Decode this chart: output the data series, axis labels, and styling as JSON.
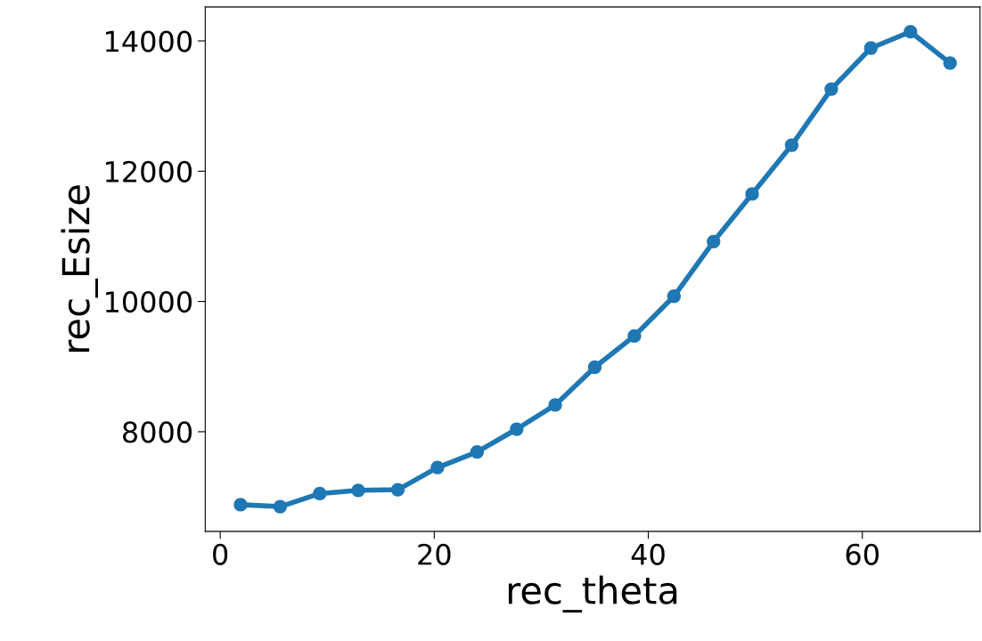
{
  "chart_data": {
    "type": "line",
    "xlabel": "rec_theta",
    "ylabel": "rec_Esize",
    "x": [
      1.9,
      5.6,
      9.3,
      12.9,
      16.6,
      20.3,
      24.0,
      27.7,
      31.3,
      35.0,
      38.7,
      42.4,
      46.1,
      49.7,
      53.4,
      57.1,
      60.8,
      64.5,
      68.2
    ],
    "series": [
      {
        "color": "#1f77b4",
        "values": [
          6880,
          6850,
          7050,
          7100,
          7110,
          7450,
          7690,
          8040,
          8410,
          8990,
          9470,
          10080,
          10920,
          11650,
          12400,
          13260,
          13890,
          14140,
          13660
        ]
      }
    ],
    "xlim": [
      -1.4,
      71.0
    ],
    "ylim": [
      6470,
      14520
    ],
    "xticks": [
      0,
      20,
      40,
      60
    ],
    "yticks": [
      8000,
      10000,
      12000,
      14000
    ],
    "marker": "circle",
    "line_style": "solid",
    "grid": false
  }
}
